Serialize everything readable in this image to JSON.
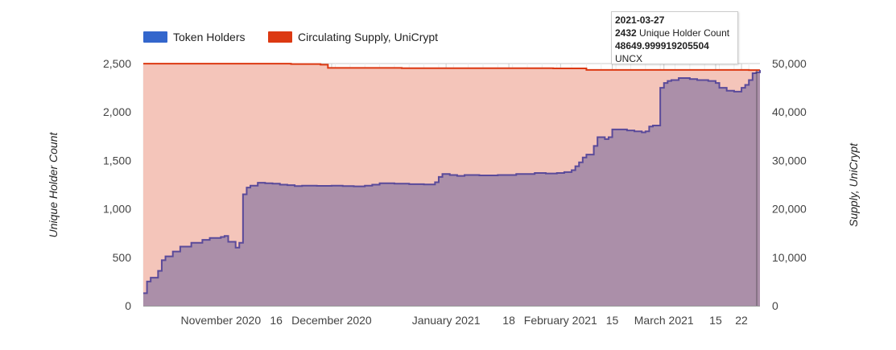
{
  "chart_data": {
    "type": "area",
    "title": "",
    "x_range": [
      "2020-10-11",
      "2021-03-27"
    ],
    "series": [
      {
        "name": "Token Holders",
        "axis": "left",
        "color": "#3366cc",
        "fill": "#a78ca8",
        "points": [
          [
            "2020-10-11",
            130
          ],
          [
            "2020-10-12",
            250
          ],
          [
            "2020-10-13",
            290
          ],
          [
            "2020-10-15",
            360
          ],
          [
            "2020-10-16",
            470
          ],
          [
            "2020-10-17",
            510
          ],
          [
            "2020-10-19",
            560
          ],
          [
            "2020-10-21",
            610
          ],
          [
            "2020-10-24",
            650
          ],
          [
            "2020-10-27",
            680
          ],
          [
            "2020-10-29",
            700
          ],
          [
            "2020-11-01",
            710
          ],
          [
            "2020-11-02",
            720
          ],
          [
            "2020-11-03",
            660
          ],
          [
            "2020-11-05",
            600
          ],
          [
            "2020-11-06",
            650
          ],
          [
            "2020-11-07",
            1150
          ],
          [
            "2020-11-08",
            1220
          ],
          [
            "2020-11-09",
            1240
          ],
          [
            "2020-11-11",
            1270
          ],
          [
            "2020-11-13",
            1265
          ],
          [
            "2020-11-15",
            1260
          ],
          [
            "2020-11-17",
            1250
          ],
          [
            "2020-11-19",
            1245
          ],
          [
            "2020-11-21",
            1235
          ],
          [
            "2020-11-23",
            1240
          ],
          [
            "2020-11-27",
            1238
          ],
          [
            "2020-12-01",
            1240
          ],
          [
            "2020-12-04",
            1235
          ],
          [
            "2020-12-07",
            1232
          ],
          [
            "2020-12-10",
            1240
          ],
          [
            "2020-12-12",
            1250
          ],
          [
            "2020-12-14",
            1265
          ],
          [
            "2020-12-18",
            1260
          ],
          [
            "2020-12-22",
            1255
          ],
          [
            "2020-12-26",
            1252
          ],
          [
            "2020-12-29",
            1275
          ],
          [
            "2020-12-30",
            1330
          ],
          [
            "2020-12-31",
            1360
          ],
          [
            "2021-01-02",
            1350
          ],
          [
            "2021-01-04",
            1340
          ],
          [
            "2021-01-06",
            1350
          ],
          [
            "2021-01-10",
            1345
          ],
          [
            "2021-01-15",
            1350
          ],
          [
            "2021-01-20",
            1360
          ],
          [
            "2021-01-25",
            1370
          ],
          [
            "2021-01-28",
            1365
          ],
          [
            "2021-01-31",
            1370
          ],
          [
            "2021-02-02",
            1380
          ],
          [
            "2021-02-04",
            1400
          ],
          [
            "2021-02-05",
            1440
          ],
          [
            "2021-02-06",
            1480
          ],
          [
            "2021-02-07",
            1530
          ],
          [
            "2021-02-08",
            1560
          ],
          [
            "2021-02-10",
            1650
          ],
          [
            "2021-02-11",
            1740
          ],
          [
            "2021-02-13",
            1720
          ],
          [
            "2021-02-14",
            1740
          ],
          [
            "2021-02-15",
            1820
          ],
          [
            "2021-02-17",
            1820
          ],
          [
            "2021-02-19",
            1810
          ],
          [
            "2021-02-21",
            1800
          ],
          [
            "2021-02-23",
            1790
          ],
          [
            "2021-02-24",
            1800
          ],
          [
            "2021-02-25",
            1850
          ],
          [
            "2021-02-26",
            1860
          ],
          [
            "2021-02-28",
            2250
          ],
          [
            "2021-03-01",
            2300
          ],
          [
            "2021-03-02",
            2320
          ],
          [
            "2021-03-03",
            2330
          ],
          [
            "2021-03-05",
            2350
          ],
          [
            "2021-03-08",
            2340
          ],
          [
            "2021-03-10",
            2330
          ],
          [
            "2021-03-13",
            2320
          ],
          [
            "2021-03-15",
            2300
          ],
          [
            "2021-03-16",
            2250
          ],
          [
            "2021-03-18",
            2220
          ],
          [
            "2021-03-20",
            2210
          ],
          [
            "2021-03-22",
            2250
          ],
          [
            "2021-03-23",
            2280
          ],
          [
            "2021-03-24",
            2330
          ],
          [
            "2021-03-25",
            2400
          ],
          [
            "2021-03-26",
            2410
          ],
          [
            "2021-03-27",
            2432
          ]
        ]
      },
      {
        "name": "Circulating Supply, UniCrypt",
        "axis": "right",
        "color": "#dc3912",
        "fill": "#f4c5ba",
        "points": [
          [
            "2020-10-11",
            49980
          ],
          [
            "2020-11-20",
            49900
          ],
          [
            "2020-11-28",
            49780
          ],
          [
            "2020-11-30",
            49100
          ],
          [
            "2020-12-20",
            49050
          ],
          [
            "2021-01-30",
            49000
          ],
          [
            "2021-02-08",
            48700
          ],
          [
            "2021-03-24",
            48650
          ],
          [
            "2021-03-27",
            48649.999919205504
          ]
        ]
      }
    ],
    "y_left": {
      "title": "Unique Holder Count",
      "min": 0,
      "max": 2500,
      "ticks": [
        "0",
        "500",
        "1,000",
        "1,500",
        "2,000",
        "2,500"
      ]
    },
    "y_right": {
      "title": "Supply, UniCrypt",
      "min": 0,
      "max": 50000,
      "ticks": [
        "0",
        "10,000",
        "20,000",
        "30,000",
        "40,000",
        "50,000"
      ]
    },
    "x_ticks": [
      {
        "date": "2020-11-01",
        "label": "November 2020"
      },
      {
        "date": "2020-11-16",
        "label": "16"
      },
      {
        "date": "2020-12-01",
        "label": "December 2020"
      },
      {
        "date": "2021-01-01",
        "label": "January 2021"
      },
      {
        "date": "2021-01-18",
        "label": "18"
      },
      {
        "date": "2021-02-01",
        "label": "February 2021"
      },
      {
        "date": "2021-02-15",
        "label": "15"
      },
      {
        "date": "2021-03-01",
        "label": "March 2021"
      },
      {
        "date": "2021-03-15",
        "label": "15"
      },
      {
        "date": "2021-03-22",
        "label": "22"
      }
    ],
    "legend_position": "top-left",
    "grid": true
  },
  "legend": [
    {
      "label": "Token Holders",
      "color": "#3366cc"
    },
    {
      "label": "Circulating Supply, UniCrypt",
      "color": "#dc3912"
    }
  ],
  "tooltip": {
    "date": "2021-03-27",
    "holder_value": "2432",
    "holder_label": "Unique Holder Count",
    "supply_value": "48649.999919205504",
    "supply_label": "UNCX"
  }
}
